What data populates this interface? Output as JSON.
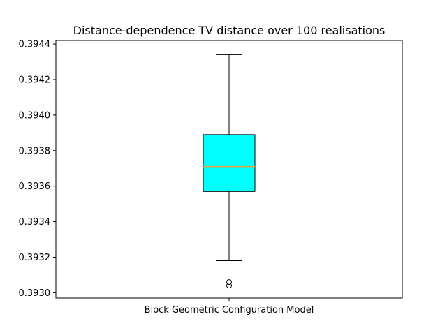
{
  "chart_data": {
    "type": "box",
    "title": "Distance-dependence TV distance over 100 realisations",
    "categories": [
      "Block Geometric Configuration Model"
    ],
    "ylim": [
      0.39297,
      0.39442
    ],
    "yticks": [
      "0.3930",
      "0.3932",
      "0.3934",
      "0.3936",
      "0.3938",
      "0.3940",
      "0.3942",
      "0.3944"
    ],
    "boxes": [
      {
        "label": "Block Geometric Configuration Model",
        "whisker_low": 0.39318,
        "q1": 0.39357,
        "median": 0.39371,
        "q3": 0.39389,
        "whisker_high": 0.39434,
        "outliers": [
          0.39306,
          0.39304
        ]
      }
    ],
    "box_color": "#00ffff",
    "median_color": "#e8a13a",
    "grid": false
  }
}
